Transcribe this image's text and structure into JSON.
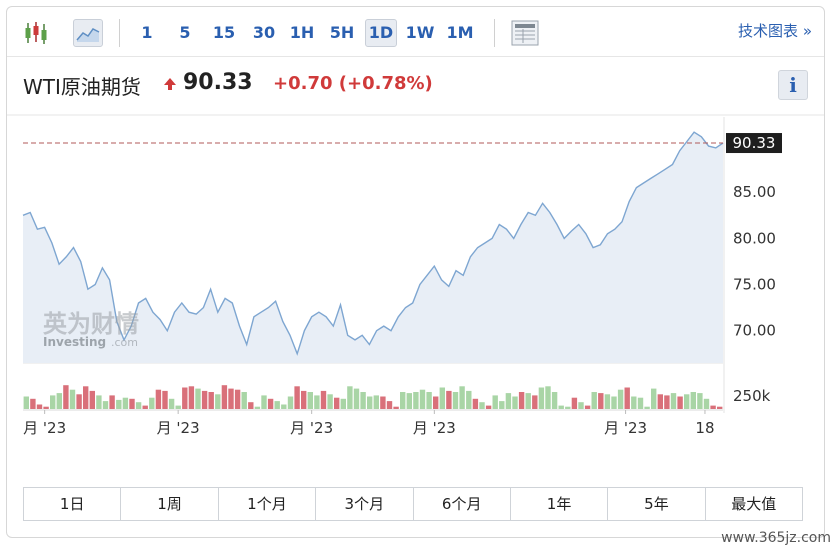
{
  "toolbar": {
    "intervals": [
      "1",
      "5",
      "15",
      "30",
      "1H",
      "5H",
      "1D",
      "1W",
      "1M"
    ],
    "active_interval": "1D",
    "tech_chart_label": "技术图表 »"
  },
  "quote": {
    "name": "WTI原油期货",
    "price": "90.33",
    "change": "+0.70",
    "change_pct": "(+0.78%)",
    "direction_color": "#d03a3a"
  },
  "info_label": "i",
  "watermark_logo": {
    "cn": "英为财情",
    "en": "Investing",
    "suffix": ".com"
  },
  "ranges": [
    "1日",
    "1周",
    "1个月",
    "3个月",
    "6个月",
    "1年",
    "5年",
    "最大值"
  ],
  "site_watermark": "www.365jz.com",
  "chart_data": {
    "type": "area",
    "title": "",
    "current_price_label": "90.33",
    "reference_line": 90.33,
    "y_ticks": [
      "85.00",
      "80.00",
      "75.00",
      "70.00"
    ],
    "ylim": [
      66.5,
      92.5
    ],
    "volume_label": "250k",
    "x_labels": [
      "月 '23",
      "月 '23",
      "月 '23",
      "月 '23",
      "月 '23",
      "18"
    ],
    "x_label_positions": [
      6,
      43,
      80,
      114,
      167,
      189
    ],
    "n_days": 195,
    "line_color": "#7ea6d1",
    "fill_color": "#e8eef6",
    "series": [
      {
        "x": 0,
        "y": 82.5
      },
      {
        "x": 2,
        "y": 82.8
      },
      {
        "x": 4,
        "y": 81.0
      },
      {
        "x": 6,
        "y": 81.2
      },
      {
        "x": 8,
        "y": 79.5
      },
      {
        "x": 10,
        "y": 77.2
      },
      {
        "x": 12,
        "y": 78.0
      },
      {
        "x": 14,
        "y": 79.0
      },
      {
        "x": 16,
        "y": 77.5
      },
      {
        "x": 18,
        "y": 74.5
      },
      {
        "x": 20,
        "y": 75.0
      },
      {
        "x": 22,
        "y": 76.8
      },
      {
        "x": 24,
        "y": 75.5
      },
      {
        "x": 26,
        "y": 71.0
      },
      {
        "x": 28,
        "y": 69.0
      },
      {
        "x": 30,
        "y": 70.5
      },
      {
        "x": 32,
        "y": 73.0
      },
      {
        "x": 34,
        "y": 73.5
      },
      {
        "x": 36,
        "y": 72.0
      },
      {
        "x": 38,
        "y": 71.2
      },
      {
        "x": 40,
        "y": 70.0
      },
      {
        "x": 42,
        "y": 72.0
      },
      {
        "x": 44,
        "y": 73.0
      },
      {
        "x": 46,
        "y": 72.0
      },
      {
        "x": 48,
        "y": 71.8
      },
      {
        "x": 50,
        "y": 72.5
      },
      {
        "x": 52,
        "y": 74.5
      },
      {
        "x": 54,
        "y": 72.0
      },
      {
        "x": 56,
        "y": 73.5
      },
      {
        "x": 58,
        "y": 73.0
      },
      {
        "x": 60,
        "y": 70.5
      },
      {
        "x": 62,
        "y": 68.5
      },
      {
        "x": 64,
        "y": 71.5
      },
      {
        "x": 66,
        "y": 72.0
      },
      {
        "x": 68,
        "y": 72.5
      },
      {
        "x": 70,
        "y": 73.2
      },
      {
        "x": 72,
        "y": 71.0
      },
      {
        "x": 74,
        "y": 69.5
      },
      {
        "x": 76,
        "y": 67.5
      },
      {
        "x": 78,
        "y": 70.0
      },
      {
        "x": 80,
        "y": 71.5
      },
      {
        "x": 82,
        "y": 72.0
      },
      {
        "x": 84,
        "y": 71.5
      },
      {
        "x": 86,
        "y": 70.5
      },
      {
        "x": 88,
        "y": 72.8
      },
      {
        "x": 90,
        "y": 69.5
      },
      {
        "x": 92,
        "y": 69.0
      },
      {
        "x": 94,
        "y": 69.5
      },
      {
        "x": 96,
        "y": 68.5
      },
      {
        "x": 98,
        "y": 70.0
      },
      {
        "x": 100,
        "y": 70.5
      },
      {
        "x": 102,
        "y": 70.0
      },
      {
        "x": 104,
        "y": 71.5
      },
      {
        "x": 106,
        "y": 72.5
      },
      {
        "x": 108,
        "y": 73.0
      },
      {
        "x": 110,
        "y": 75.0
      },
      {
        "x": 112,
        "y": 76.0
      },
      {
        "x": 114,
        "y": 77.0
      },
      {
        "x": 116,
        "y": 75.5
      },
      {
        "x": 118,
        "y": 74.8
      },
      {
        "x": 120,
        "y": 76.5
      },
      {
        "x": 122,
        "y": 76.0
      },
      {
        "x": 124,
        "y": 78.0
      },
      {
        "x": 126,
        "y": 79.0
      },
      {
        "x": 128,
        "y": 79.5
      },
      {
        "x": 130,
        "y": 80.0
      },
      {
        "x": 132,
        "y": 81.5
      },
      {
        "x": 134,
        "y": 81.0
      },
      {
        "x": 136,
        "y": 80.0
      },
      {
        "x": 138,
        "y": 81.5
      },
      {
        "x": 140,
        "y": 82.8
      },
      {
        "x": 142,
        "y": 82.5
      },
      {
        "x": 144,
        "y": 83.8
      },
      {
        "x": 146,
        "y": 82.8
      },
      {
        "x": 148,
        "y": 81.5
      },
      {
        "x": 150,
        "y": 80.0
      },
      {
        "x": 152,
        "y": 80.8
      },
      {
        "x": 154,
        "y": 81.5
      },
      {
        "x": 156,
        "y": 80.5
      },
      {
        "x": 158,
        "y": 79.0
      },
      {
        "x": 160,
        "y": 79.3
      },
      {
        "x": 162,
        "y": 80.5
      },
      {
        "x": 164,
        "y": 81.0
      },
      {
        "x": 166,
        "y": 81.8
      },
      {
        "x": 168,
        "y": 84.0
      },
      {
        "x": 170,
        "y": 85.5
      },
      {
        "x": 172,
        "y": 86.0
      },
      {
        "x": 174,
        "y": 86.5
      },
      {
        "x": 176,
        "y": 87.0
      },
      {
        "x": 178,
        "y": 87.5
      },
      {
        "x": 180,
        "y": 88.0
      },
      {
        "x": 182,
        "y": 89.5
      },
      {
        "x": 184,
        "y": 90.5
      },
      {
        "x": 186,
        "y": 91.5
      },
      {
        "x": 188,
        "y": 91.0
      },
      {
        "x": 190,
        "y": 90.0
      },
      {
        "x": 192,
        "y": 89.8
      },
      {
        "x": 194,
        "y": 90.33
      }
    ],
    "volume": {
      "ymax": 300,
      "up_color": "#a9d5a6",
      "down_color": "#d9707a",
      "bars": [
        {
          "v": 110,
          "up": true
        },
        {
          "v": 90,
          "up": false
        },
        {
          "v": 40,
          "up": false
        },
        {
          "v": 20,
          "up": false
        },
        {
          "v": 120,
          "up": true
        },
        {
          "v": 140,
          "up": true
        },
        {
          "v": 210,
          "up": false
        },
        {
          "v": 170,
          "up": true
        },
        {
          "v": 130,
          "up": false
        },
        {
          "v": 200,
          "up": false
        },
        {
          "v": 160,
          "up": false
        },
        {
          "v": 120,
          "up": true
        },
        {
          "v": 70,
          "up": true
        },
        {
          "v": 120,
          "up": false
        },
        {
          "v": 80,
          "up": true
        },
        {
          "v": 100,
          "up": true
        },
        {
          "v": 90,
          "up": false
        },
        {
          "v": 60,
          "up": true
        },
        {
          "v": 30,
          "up": false
        },
        {
          "v": 100,
          "up": true
        },
        {
          "v": 170,
          "up": false
        },
        {
          "v": 160,
          "up": false
        },
        {
          "v": 90,
          "up": true
        },
        {
          "v": 30,
          "up": true
        },
        {
          "v": 190,
          "up": false
        },
        {
          "v": 200,
          "up": false
        },
        {
          "v": 180,
          "up": true
        },
        {
          "v": 160,
          "up": false
        },
        {
          "v": 150,
          "up": false
        },
        {
          "v": 130,
          "up": true
        },
        {
          "v": 210,
          "up": false
        },
        {
          "v": 180,
          "up": false
        },
        {
          "v": 170,
          "up": false
        },
        {
          "v": 150,
          "up": true
        },
        {
          "v": 60,
          "up": false
        },
        {
          "v": 20,
          "up": true
        },
        {
          "v": 120,
          "up": true
        },
        {
          "v": 90,
          "up": false
        },
        {
          "v": 70,
          "up": true
        },
        {
          "v": 40,
          "up": true
        },
        {
          "v": 110,
          "up": true
        },
        {
          "v": 200,
          "up": false
        },
        {
          "v": 160,
          "up": false
        },
        {
          "v": 150,
          "up": true
        },
        {
          "v": 120,
          "up": true
        },
        {
          "v": 160,
          "up": false
        },
        {
          "v": 130,
          "up": true
        },
        {
          "v": 100,
          "up": false
        },
        {
          "v": 90,
          "up": true
        },
        {
          "v": 200,
          "up": true
        },
        {
          "v": 180,
          "up": true
        },
        {
          "v": 150,
          "up": true
        },
        {
          "v": 110,
          "up": true
        },
        {
          "v": 120,
          "up": true
        },
        {
          "v": 110,
          "up": false
        },
        {
          "v": 70,
          "up": false
        },
        {
          "v": 20,
          "up": false
        },
        {
          "v": 150,
          "up": true
        },
        {
          "v": 140,
          "up": true
        },
        {
          "v": 150,
          "up": true
        },
        {
          "v": 170,
          "up": true
        },
        {
          "v": 150,
          "up": true
        },
        {
          "v": 110,
          "up": false
        },
        {
          "v": 190,
          "up": true
        },
        {
          "v": 160,
          "up": false
        },
        {
          "v": 150,
          "up": true
        },
        {
          "v": 200,
          "up": true
        },
        {
          "v": 160,
          "up": true
        },
        {
          "v": 90,
          "up": false
        },
        {
          "v": 60,
          "up": true
        },
        {
          "v": 30,
          "up": false
        },
        {
          "v": 120,
          "up": true
        },
        {
          "v": 70,
          "up": true
        },
        {
          "v": 140,
          "up": true
        },
        {
          "v": 110,
          "up": true
        },
        {
          "v": 150,
          "up": false
        },
        {
          "v": 140,
          "up": true
        },
        {
          "v": 120,
          "up": false
        },
        {
          "v": 190,
          "up": true
        },
        {
          "v": 200,
          "up": true
        },
        {
          "v": 150,
          "up": true
        },
        {
          "v": 30,
          "up": true
        },
        {
          "v": 20,
          "up": true
        },
        {
          "v": 100,
          "up": false
        },
        {
          "v": 60,
          "up": true
        },
        {
          "v": 30,
          "up": false
        },
        {
          "v": 150,
          "up": true
        },
        {
          "v": 140,
          "up": false
        },
        {
          "v": 130,
          "up": true
        },
        {
          "v": 110,
          "up": true
        },
        {
          "v": 170,
          "up": true
        },
        {
          "v": 190,
          "up": false
        },
        {
          "v": 110,
          "up": true
        },
        {
          "v": 100,
          "up": true
        },
        {
          "v": 20,
          "up": true
        },
        {
          "v": 180,
          "up": true
        },
        {
          "v": 130,
          "up": false
        },
        {
          "v": 120,
          "up": false
        },
        {
          "v": 140,
          "up": true
        },
        {
          "v": 110,
          "up": false
        },
        {
          "v": 130,
          "up": true
        },
        {
          "v": 150,
          "up": true
        },
        {
          "v": 140,
          "up": true
        },
        {
          "v": 90,
          "up": true
        },
        {
          "v": 30,
          "up": false
        },
        {
          "v": 20,
          "up": false
        }
      ]
    }
  }
}
